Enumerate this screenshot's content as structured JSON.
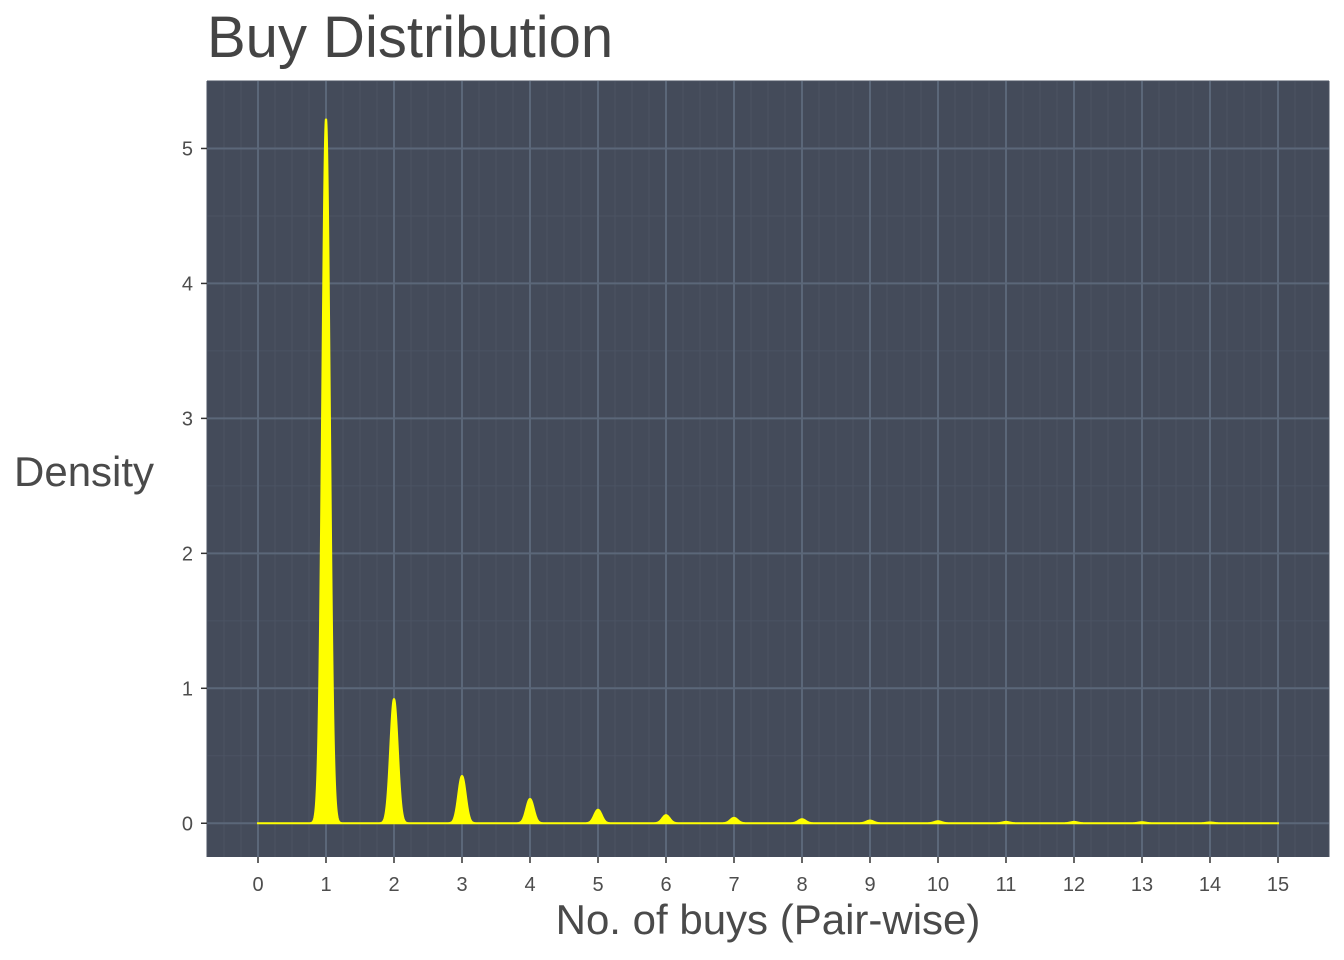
{
  "chart_data": {
    "type": "area",
    "title": "Buy Distribution",
    "xlabel": "No. of buys (Pair-wise)",
    "ylabel": "Density",
    "xlim": [
      -0.75,
      15.75
    ],
    "ylim": [
      -0.25,
      5.5
    ],
    "x_ticks": [
      0,
      1,
      2,
      3,
      4,
      5,
      6,
      7,
      8,
      9,
      10,
      11,
      12,
      13,
      14,
      15
    ],
    "y_ticks": [
      0,
      1,
      2,
      3,
      4,
      5
    ],
    "x_tick_labels": [
      "0",
      "1",
      "2",
      "3",
      "4",
      "5",
      "6",
      "7",
      "8",
      "9",
      "10",
      "11",
      "12",
      "13",
      "14",
      "15"
    ],
    "y_tick_labels": [
      "0",
      "1",
      "2",
      "3",
      "4",
      "5"
    ],
    "grid": true,
    "series": [
      {
        "peaks_x": [
          1,
          2,
          3,
          4,
          5,
          6,
          7,
          8,
          9,
          10,
          11,
          12,
          13,
          14,
          15
        ],
        "peaks_density": [
          5.22,
          0.92,
          0.35,
          0.18,
          0.1,
          0.06,
          0.04,
          0.03,
          0.02,
          0.015,
          0.01,
          0.01,
          0.008,
          0.006,
          0.0
        ],
        "x_range": [
          0,
          15
        ]
      }
    ],
    "colors": {
      "fill": "#ffff00",
      "panel_background": "#444b5a",
      "grid_major": "#5b6779",
      "grid_minor": "#4b5363",
      "text": "#4d4d4d"
    }
  }
}
